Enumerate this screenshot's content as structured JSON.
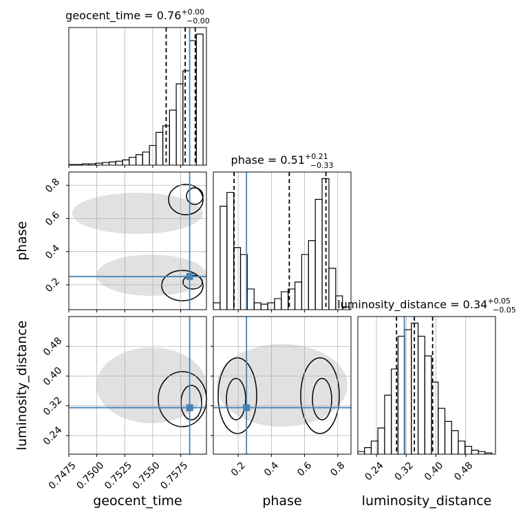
{
  "chart_data": {
    "type": "corner",
    "truth_color": "#4682b4",
    "hist_color": "#000000",
    "grid": true,
    "parameters": [
      {
        "name": "geocent_time",
        "title": "geocent_time = 0.76",
        "plus": "+0.00",
        "minus": "−0.00",
        "lim": [
          0.7475,
          0.7598
        ],
        "ticks": [
          0.7475,
          {
            "value": 0.75,
            "label": "0.7500"
          },
          0.7525,
          {
            "value": 0.755,
            "label": "0.7550"
          },
          0.7575
        ],
        "truth": 0.7583,
        "quantiles": [
          0.7562,
          0.7579,
          0.7588
        ],
        "bins": [
          0.7475,
          0.7481,
          0.7487,
          0.7493,
          0.7499,
          0.7505,
          0.7511,
          0.7517,
          0.7523,
          0.7529,
          0.7535,
          0.7541,
          0.7547,
          0.7553,
          0.7559,
          0.7565,
          0.7571,
          0.7577,
          0.7583,
          0.7589,
          0.7595
        ],
        "values": [
          0.005,
          0.005,
          0.01,
          0.01,
          0.015,
          0.02,
          0.025,
          0.03,
          0.04,
          0.06,
          0.08,
          0.1,
          0.15,
          0.25,
          0.3,
          0.42,
          0.62,
          0.72,
          0.95,
          1.0
        ]
      },
      {
        "name": "phase",
        "title": "phase = 0.51",
        "plus": "+0.21",
        "minus": "−0.33",
        "lim": [
          0.05,
          0.88
        ],
        "ticks": [
          0.2,
          0.4,
          0.6,
          0.8
        ],
        "truth": 0.25,
        "quantiles": [
          0.175,
          0.508,
          0.729
        ],
        "bins": [
          0.05,
          0.091,
          0.132,
          0.173,
          0.214,
          0.255,
          0.296,
          0.337,
          0.378,
          0.419,
          0.46,
          0.501,
          0.542,
          0.583,
          0.624,
          0.665,
          0.706,
          0.747,
          0.788,
          0.829,
          0.87
        ],
        "values": [
          0.05,
          0.75,
          0.85,
          0.45,
          0.4,
          0.15,
          0.05,
          0.04,
          0.05,
          0.08,
          0.13,
          0.15,
          0.2,
          0.4,
          0.5,
          0.8,
          0.95,
          0.3,
          0.1,
          0.02
        ]
      },
      {
        "name": "luminosity_distance",
        "title": "luminosity_distance = 0.34",
        "plus": "+0.05",
        "minus": "−0.05",
        "lim": [
          0.19,
          0.56
        ],
        "ticks": [
          0.24,
          0.32,
          {
            "value": 0.4,
            "label": "0.40"
          },
          0.48
        ],
        "truth": 0.315,
        "quantiles": [
          0.294,
          0.342,
          0.391
        ],
        "bins": [
          0.19,
          0.208,
          0.226,
          0.244,
          0.262,
          0.28,
          0.298,
          0.316,
          0.334,
          0.352,
          0.37,
          0.388,
          0.406,
          0.424,
          0.442,
          0.46,
          0.478,
          0.496,
          0.514,
          0.532,
          0.55
        ],
        "values": [
          0.02,
          0.05,
          0.1,
          0.2,
          0.45,
          0.65,
          0.9,
          0.95,
          1.0,
          0.9,
          0.75,
          0.55,
          0.35,
          0.25,
          0.18,
          0.1,
          0.06,
          0.03,
          0.02,
          0.01
        ]
      }
    ]
  }
}
